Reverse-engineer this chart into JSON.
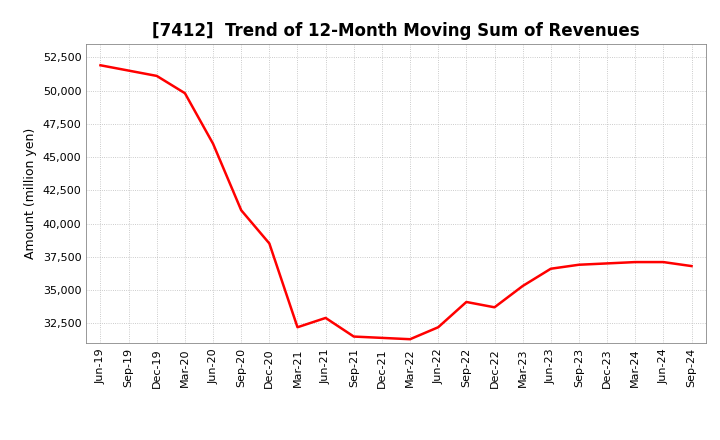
{
  "title": "[7412]  Trend of 12-Month Moving Sum of Revenues",
  "ylabel": "Amount (million yen)",
  "line_color": "#FF0000",
  "line_width": 1.8,
  "background_color": "#FFFFFF",
  "plot_bg_color": "#FFFFFF",
  "grid_color": "#BBBBBB",
  "ylim": [
    31000,
    53500
  ],
  "yticks": [
    32500,
    35000,
    37500,
    40000,
    42500,
    45000,
    47500,
    50000,
    52500
  ],
  "dates": [
    "Jun-19",
    "Sep-19",
    "Dec-19",
    "Mar-20",
    "Jun-20",
    "Sep-20",
    "Dec-20",
    "Mar-21",
    "Jun-21",
    "Sep-21",
    "Dec-21",
    "Mar-22",
    "Jun-22",
    "Sep-22",
    "Dec-22",
    "Mar-23",
    "Jun-23",
    "Sep-23",
    "Dec-23",
    "Mar-24",
    "Jun-24",
    "Sep-24"
  ],
  "values": [
    51900,
    51500,
    51100,
    49800,
    46000,
    41000,
    38500,
    32200,
    32900,
    31500,
    31400,
    31300,
    32200,
    34100,
    33700,
    35300,
    36600,
    36900,
    37000,
    37100,
    37100,
    36800
  ],
  "title_fontsize": 12,
  "ylabel_fontsize": 9,
  "tick_fontsize": 8
}
